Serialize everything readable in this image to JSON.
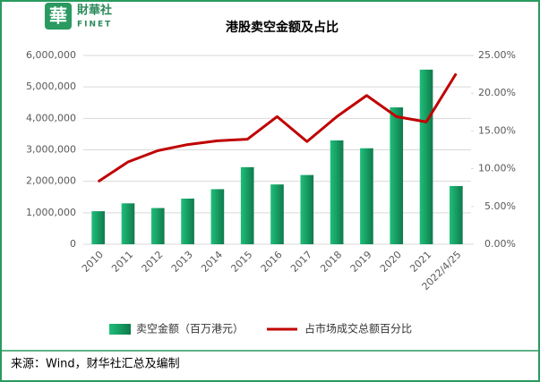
{
  "logo": {
    "mark": "華",
    "name": "財華社",
    "latin": "FINET"
  },
  "source": "来源：Wind，财华社汇总及编制",
  "chart_data": {
    "type": "bar",
    "title": "港股卖空金额及占比",
    "categories": [
      "2010",
      "2011",
      "2012",
      "2013",
      "2014",
      "2015",
      "2016",
      "2017",
      "2018",
      "2019",
      "2020",
      "2021",
      "2022/4/25"
    ],
    "series": [
      {
        "name": "卖空金额（百万港元）",
        "type": "bar",
        "color": "#16a066",
        "values": [
          1050000,
          1300000,
          1150000,
          1450000,
          1750000,
          2450000,
          1900000,
          2200000,
          3300000,
          3050000,
          4350000,
          5550000,
          1850000
        ]
      },
      {
        "name": "占市场成交总额百分比",
        "type": "line",
        "color": "#c00000",
        "axis": "y2",
        "values": [
          8.3,
          10.9,
          12.4,
          13.2,
          13.7,
          13.9,
          16.9,
          13.6,
          16.9,
          19.7,
          16.9,
          16.2,
          22.6
        ]
      }
    ],
    "ylim": [
      0,
      6000000
    ],
    "yticks": [
      0,
      {
        "value": 1000000,
        "label": "1,000,000"
      },
      {
        "value": 2000000,
        "label": "2,000,000"
      },
      {
        "value": 3000000,
        "label": "3,000,000"
      },
      {
        "value": 4000000,
        "label": "4,000,000"
      },
      {
        "value": 5000000,
        "label": "5,000,000"
      },
      {
        "value": 6000000,
        "label": "6,000,000"
      }
    ],
    "y2lim": [
      0,
      25
    ],
    "y2ticks": [
      {
        "value": 0,
        "label": "0.00%"
      },
      {
        "value": 5,
        "label": "5.00%"
      },
      {
        "value": 10,
        "label": "10.00%"
      },
      {
        "value": 15,
        "label": "15.00%"
      },
      {
        "value": 20,
        "label": "20.00%"
      },
      {
        "value": 25,
        "label": "25.00%"
      }
    ],
    "grid": true,
    "legend": "bottom"
  }
}
